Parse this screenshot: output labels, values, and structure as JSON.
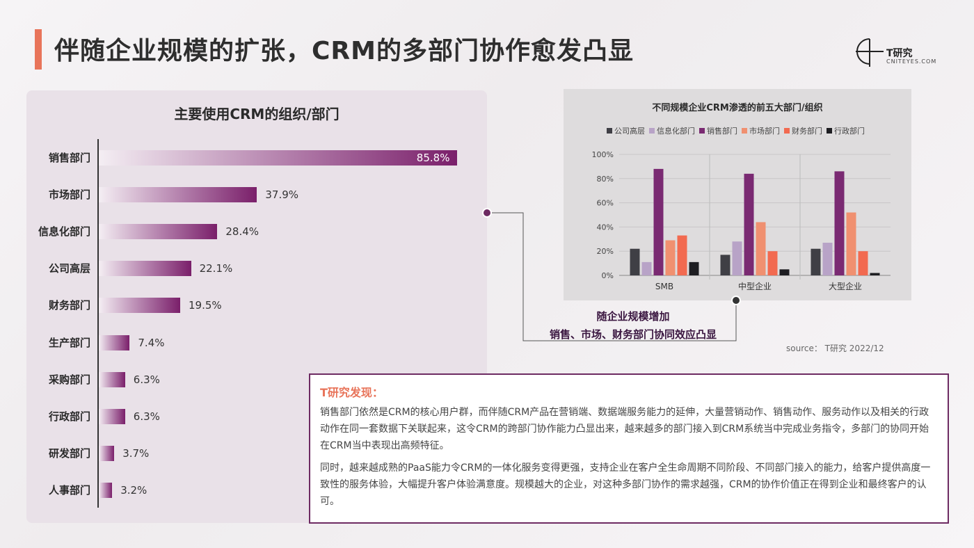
{
  "header": {
    "title": "伴随企业规模的扩张，CRM的多部门协作愈发凸显",
    "logo_title": "T研究",
    "logo_subtitle": "CNITEYES.COM"
  },
  "colors": {
    "accent": "#e8745a",
    "brand": "#6d2a62"
  },
  "left_chart_title": "主要使用CRM的组织/部门",
  "right_chart_title": "不同规模企业CRM渗透的前五大部门/组织",
  "callout": {
    "line1": "随企业规模增加",
    "line2": "销售、市场、财务部门协同效应凸显"
  },
  "source": "source： T研究 2022/12",
  "findings": {
    "title": "T研究发现：",
    "para1": "销售部门依然是CRM的核心用户群，而伴随CRM产品在营销端、数据端服务能力的延伸，大量营销动作、销售动作、服务动作以及相关的行政动作在同一套数据下关联起来，这令CRM的跨部门协作能力凸显出来，越来越多的部门接入到CRM系统当中完成业务指令，多部门的协同开始在CRM当中表现出高频特征。",
    "para2": "同时，越来越成熟的PaaS能力令CRM的一体化服务变得更强，支持企业在客户全生命周期不同阶段、不同部门接入的能力，给客户提供高度一致性的服务体验，大幅提升客户体验满意度。规模越大的企业，对这种多部门协作的需求越强，CRM的协作价值正在得到企业和最终客户的认可。"
  },
  "chart_data": [
    {
      "type": "bar",
      "orientation": "horizontal",
      "title": "主要使用CRM的组织/部门",
      "categories": [
        "销售部门",
        "市场部门",
        "信息化部门",
        "公司高层",
        "财务部门",
        "生产部门",
        "采购部门",
        "行政部门",
        "研发部门",
        "人事部门"
      ],
      "values": [
        85.8,
        37.9,
        28.4,
        22.1,
        19.5,
        7.4,
        6.3,
        6.3,
        3.7,
        3.2
      ],
      "value_labels": [
        "85.8%",
        "37.9%",
        "28.4%",
        "22.1%",
        "19.5%",
        "7.4%",
        "6.3%",
        "6.3%",
        "3.7%",
        "3.2%"
      ],
      "xlim": [
        0,
        100
      ],
      "unit": "%"
    },
    {
      "type": "bar",
      "title": "不同规模企业CRM渗透的前五大部门/组织",
      "categories": [
        "SMB",
        "中型企业",
        "大型企业"
      ],
      "ylim": [
        0,
        100
      ],
      "yticks": [
        "0%",
        "20%",
        "40%",
        "60%",
        "80%",
        "100%"
      ],
      "legend_position": "top",
      "grid": true,
      "series": [
        {
          "name": "公司高层",
          "color": "#3f3f45",
          "values": [
            22,
            17,
            22
          ]
        },
        {
          "name": "信息化部门",
          "color": "#b8a3c7",
          "values": [
            11,
            28,
            27
          ]
        },
        {
          "name": "销售部门",
          "color": "#7a2a72",
          "values": [
            88,
            84,
            86
          ]
        },
        {
          "name": "市场部门",
          "color": "#f09070",
          "values": [
            29,
            44,
            52
          ]
        },
        {
          "name": "财务部门",
          "color": "#f26a50",
          "values": [
            33,
            20,
            20
          ]
        },
        {
          "name": "行政部门",
          "color": "#1e1e22",
          "values": [
            11,
            5,
            2
          ]
        }
      ]
    }
  ]
}
